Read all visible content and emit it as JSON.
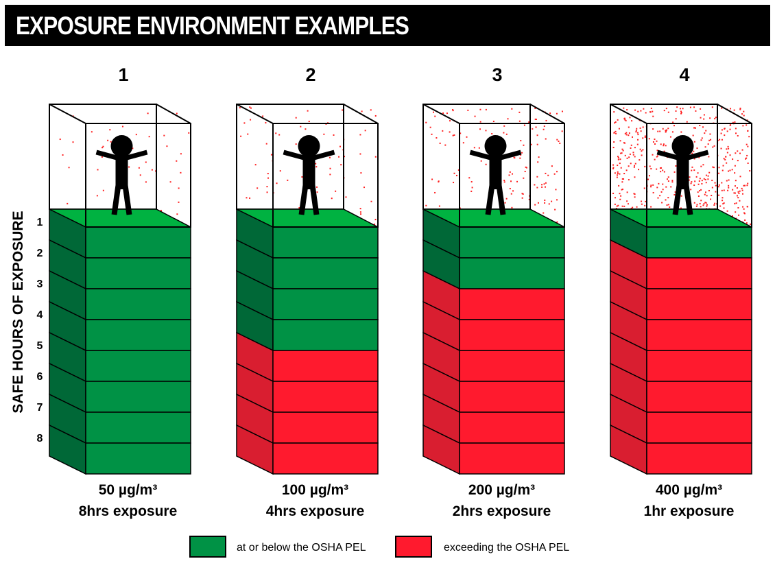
{
  "title": "EXPOSURE ENVIRONMENT EXAMPLES",
  "y_axis_label": "SAFE HOURS OF EXPOSURE",
  "hour_labels": [
    "1",
    "2",
    "3",
    "4",
    "5",
    "6",
    "7",
    "8"
  ],
  "colors": {
    "green_front": "#009245",
    "green_side": "#006837",
    "green_top": "#00b241",
    "red_front": "#ff1a2e",
    "red_side": "#d91e30",
    "particle": "#ff2020"
  },
  "columns": [
    {
      "number": "1",
      "concentration": "50 µg/m³",
      "duration": "8hrs exposure",
      "safe_hours": 8
    },
    {
      "number": "2",
      "concentration": "100 µg/m³",
      "duration": "4hrs exposure",
      "safe_hours": 4
    },
    {
      "number": "3",
      "concentration": "200 µg/m³",
      "duration": "2hrs exposure",
      "safe_hours": 2
    },
    {
      "number": "4",
      "concentration": "400 µg/m³",
      "duration": "1hr exposure",
      "safe_hours": 1
    }
  ],
  "legend": [
    {
      "label": "at or below the OSHA PEL",
      "color": "#009245"
    },
    {
      "label": "exceeding the OSHA PEL",
      "color": "#ff1a2e"
    }
  ]
}
